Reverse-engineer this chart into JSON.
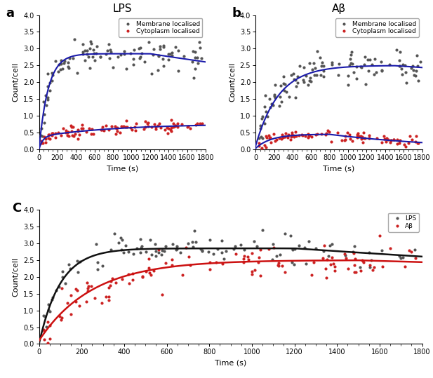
{
  "panel_a_title": "LPS",
  "panel_b_title": "Aβ",
  "xlabel": "Time (s)",
  "ylabel": "Count/cell",
  "xlim": [
    0,
    1800
  ],
  "ylim": [
    0,
    4.0
  ],
  "yticks": [
    0.0,
    0.5,
    1.0,
    1.5,
    2.0,
    2.5,
    3.0,
    3.5,
    4.0
  ],
  "xticks": [
    0,
    200,
    400,
    600,
    800,
    1000,
    1200,
    1400,
    1600,
    1800
  ],
  "dark_color": "#555555",
  "red_color": "#cc2222",
  "blue_fit_color": "#1a1aaa",
  "black_fit_color": "#111111",
  "red_fit_color": "#cc1111",
  "legend_a_entries": [
    "Membrane localised",
    "Cytoplasm localised"
  ],
  "legend_c_entries": [
    "LPS",
    "Aβ"
  ]
}
